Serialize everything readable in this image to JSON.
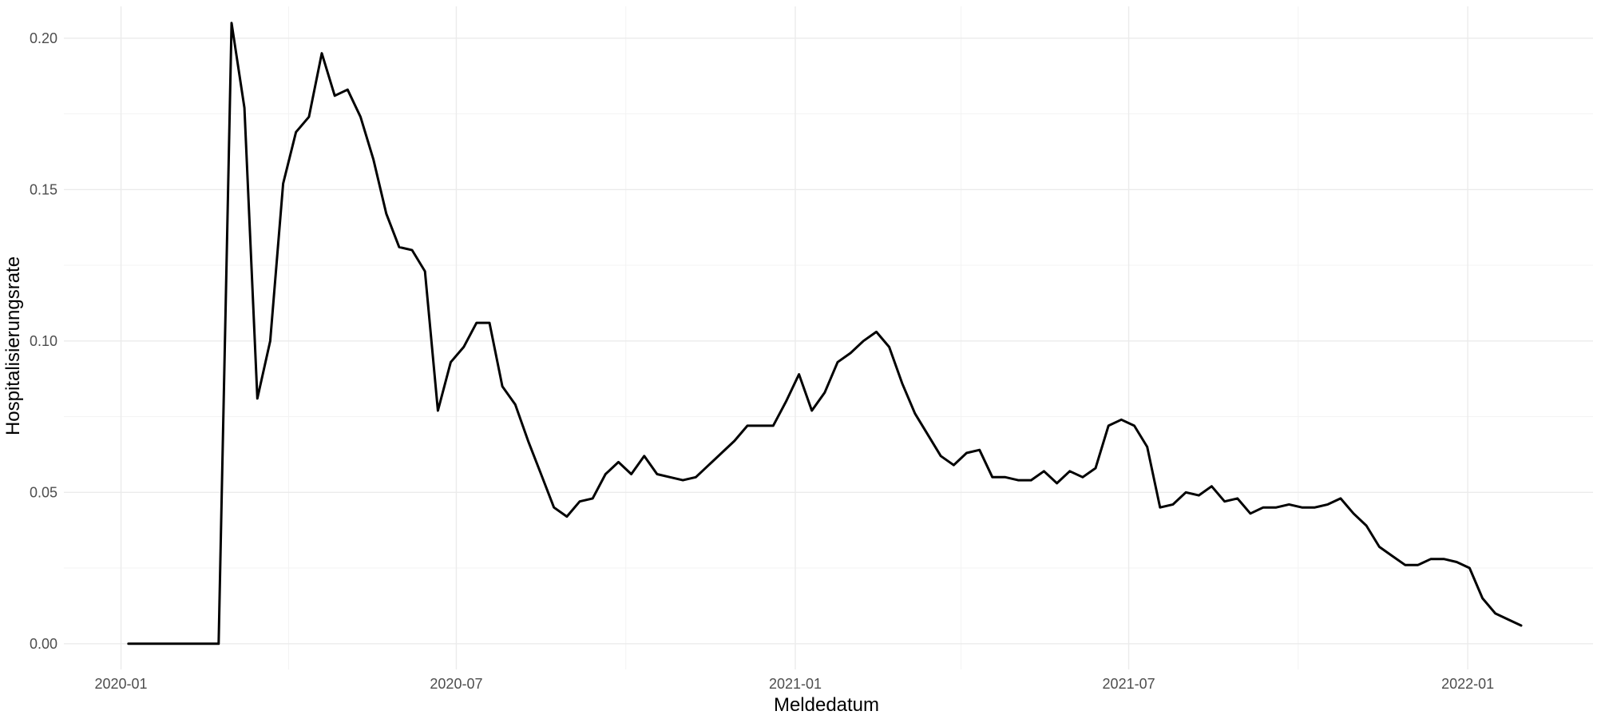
{
  "chart_data": {
    "type": "line",
    "title": "",
    "xlabel": "Meldedatum",
    "ylabel": "Hospitalisierungsrate",
    "x_axis": {
      "type": "date",
      "range": [
        "2019-12-01",
        "2022-03-10"
      ],
      "ticks": [
        {
          "date": "2020-01-01",
          "label": "2020-01"
        },
        {
          "date": "2020-07-01",
          "label": "2020-07"
        },
        {
          "date": "2021-01-01",
          "label": "2021-01"
        },
        {
          "date": "2021-07-01",
          "label": "2021-07"
        },
        {
          "date": "2022-01-01",
          "label": "2022-01"
        }
      ],
      "minor_ticks": [
        "2020-04-01",
        "2020-10-01",
        "2021-04-01",
        "2021-10-01"
      ]
    },
    "y_axis": {
      "range": [
        -0.0085,
        0.2105
      ],
      "ticks": [
        {
          "value": 0.0,
          "label": "0.00"
        },
        {
          "value": 0.05,
          "label": "0.05"
        },
        {
          "value": 0.1,
          "label": "0.10"
        },
        {
          "value": 0.15,
          "label": "0.15"
        },
        {
          "value": 0.2,
          "label": "0.20"
        }
      ],
      "minor_ticks": [
        0.025,
        0.075,
        0.125,
        0.175
      ]
    },
    "grid": true,
    "series_color": "#000000",
    "x": [
      "2020-01-05",
      "2020-01-12",
      "2020-01-19",
      "2020-01-26",
      "2020-02-02",
      "2020-02-09",
      "2020-02-16",
      "2020-02-23",
      "2020-03-01",
      "2020-03-08",
      "2020-03-15",
      "2020-03-22",
      "2020-03-29",
      "2020-04-05",
      "2020-04-12",
      "2020-04-19",
      "2020-04-26",
      "2020-05-03",
      "2020-05-10",
      "2020-05-17",
      "2020-05-24",
      "2020-05-31",
      "2020-06-07",
      "2020-06-14",
      "2020-06-21",
      "2020-06-28",
      "2020-07-05",
      "2020-07-12",
      "2020-07-19",
      "2020-07-26",
      "2020-08-02",
      "2020-08-09",
      "2020-08-16",
      "2020-08-23",
      "2020-08-30",
      "2020-09-06",
      "2020-09-13",
      "2020-09-20",
      "2020-09-27",
      "2020-10-04",
      "2020-10-11",
      "2020-10-18",
      "2020-10-25",
      "2020-11-01",
      "2020-11-08",
      "2020-11-15",
      "2020-11-22",
      "2020-11-29",
      "2020-12-06",
      "2020-12-13",
      "2020-12-20",
      "2020-12-27",
      "2021-01-03",
      "2021-01-10",
      "2021-01-17",
      "2021-01-24",
      "2021-01-31",
      "2021-02-07",
      "2021-02-14",
      "2021-02-21",
      "2021-02-28",
      "2021-03-07",
      "2021-03-14",
      "2021-03-21",
      "2021-03-28",
      "2021-04-04",
      "2021-04-11",
      "2021-04-18",
      "2021-04-25",
      "2021-05-02",
      "2021-05-09",
      "2021-05-16",
      "2021-05-23",
      "2021-05-30",
      "2021-06-06",
      "2021-06-13",
      "2021-06-20",
      "2021-06-27",
      "2021-07-04",
      "2021-07-11",
      "2021-07-18",
      "2021-07-25",
      "2021-08-01",
      "2021-08-08",
      "2021-08-15",
      "2021-08-22",
      "2021-08-29",
      "2021-09-05",
      "2021-09-12",
      "2021-09-19",
      "2021-09-26",
      "2021-10-03",
      "2021-10-10",
      "2021-10-17",
      "2021-10-24",
      "2021-10-31",
      "2021-11-07",
      "2021-11-14",
      "2021-11-21",
      "2021-11-28",
      "2021-12-05",
      "2021-12-12",
      "2021-12-19",
      "2021-12-26",
      "2022-01-02",
      "2022-01-09",
      "2022-01-16",
      "2022-01-23",
      "2022-01-30"
    ],
    "series": [
      {
        "values": [
          0,
          0,
          0,
          0,
          0,
          0,
          0,
          0,
          0.205,
          0.177,
          0.081,
          0.1,
          0.152,
          0.169,
          0.174,
          0.195,
          0.181,
          0.183,
          0.174,
          0.16,
          0.142,
          0.131,
          0.13,
          0.123,
          0.077,
          0.093,
          0.098,
          0.106,
          0.106,
          0.085,
          0.079,
          0.067,
          0.056,
          0.045,
          0.042,
          0.047,
          0.048,
          0.056,
          0.06,
          0.056,
          0.062,
          0.056,
          0.055,
          0.054,
          0.055,
          0.059,
          0.063,
          0.067,
          0.072,
          0.072,
          0.072,
          0.08,
          0.089,
          0.077,
          0.083,
          0.093,
          0.096,
          0.1,
          0.103,
          0.098,
          0.086,
          0.076,
          0.069,
          0.062,
          0.059,
          0.063,
          0.064,
          0.055,
          0.055,
          0.054,
          0.054,
          0.057,
          0.053,
          0.057,
          0.055,
          0.058,
          0.072,
          0.074,
          0.072,
          0.065,
          0.045,
          0.046,
          0.05,
          0.049,
          0.052,
          0.047,
          0.048,
          0.043,
          0.045,
          0.045,
          0.046,
          0.045,
          0.045,
          0.046,
          0.048,
          0.043,
          0.039,
          0.032,
          0.029,
          0.026,
          0.026,
          0.028,
          0.028,
          0.027,
          0.025,
          0.015,
          0.01,
          0.008,
          0.006
        ]
      }
    ]
  }
}
